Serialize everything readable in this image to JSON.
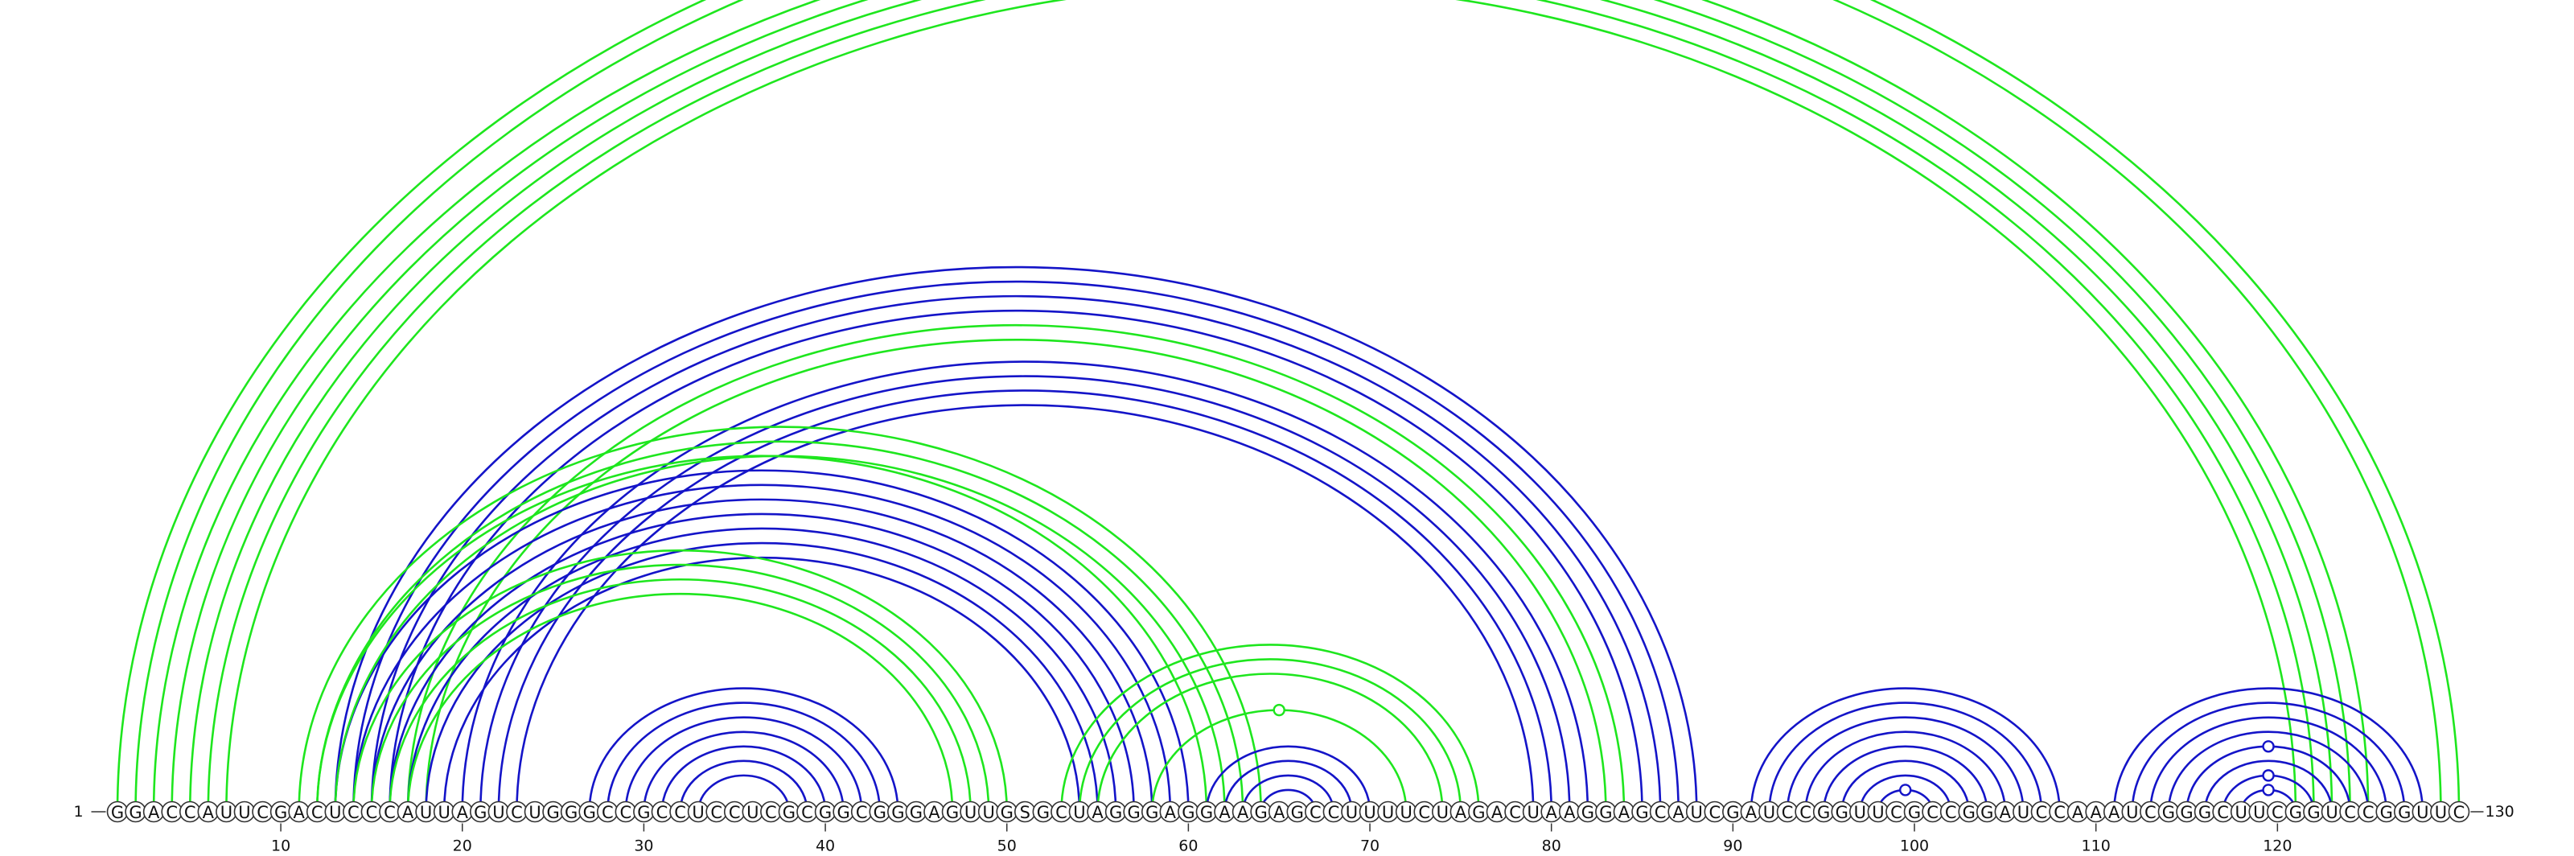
{
  "sequence": "GGACCAUUCGACUCCCAUUAGUCUGGGCCGCCUCCUCGCGGCGGGAGUUGSGCUAGGGAGGAAGAGCCUUUUCUAGACUAAGGAGCAUCGAUCCGGUUCGCCGGAUCCAAAUCGGGCUUCGGUCCGGUUC",
  "start_label": "1",
  "end_label": "130",
  "ticks": [
    "10",
    "20",
    "30",
    "40",
    "50",
    "60",
    "70",
    "80",
    "90",
    "100",
    "110",
    "120"
  ],
  "tick_positions": [
    10,
    20,
    30,
    40,
    50,
    60,
    70,
    80,
    90,
    100,
    110,
    120
  ],
  "colors": {
    "green": "#1ee61e",
    "blue": "#1414c8"
  },
  "arcs": [
    {
      "color": "green",
      "i": 1,
      "j": 130
    },
    {
      "color": "green",
      "i": 2,
      "j": 129
    },
    {
      "color": "green",
      "i": 3,
      "j": 125
    },
    {
      "color": "green",
      "i": 4,
      "j": 124
    },
    {
      "color": "green",
      "i": 5,
      "j": 123
    },
    {
      "color": "green",
      "i": 6,
      "j": 122
    },
    {
      "color": "green",
      "i": 7,
      "j": 121
    },
    {
      "color": "blue",
      "i": 13,
      "j": 88
    },
    {
      "color": "blue",
      "i": 14,
      "j": 87
    },
    {
      "color": "blue",
      "i": 15,
      "j": 86
    },
    {
      "color": "blue",
      "i": 16,
      "j": 85
    },
    {
      "color": "green",
      "i": 17,
      "j": 84
    },
    {
      "color": "green",
      "i": 18,
      "j": 83
    },
    {
      "color": "blue",
      "i": 20,
      "j": 82
    },
    {
      "color": "blue",
      "i": 21,
      "j": 81
    },
    {
      "color": "blue",
      "i": 22,
      "j": 80
    },
    {
      "color": "blue",
      "i": 23,
      "j": 79
    },
    {
      "color": "blue",
      "i": 13,
      "j": 60
    },
    {
      "color": "blue",
      "i": 14,
      "j": 59
    },
    {
      "color": "blue",
      "i": 15,
      "j": 58
    },
    {
      "color": "blue",
      "i": 16,
      "j": 57
    },
    {
      "color": "blue",
      "i": 17,
      "j": 56
    },
    {
      "color": "blue",
      "i": 18,
      "j": 55
    },
    {
      "color": "blue",
      "i": 19,
      "j": 54
    },
    {
      "color": "green",
      "i": 11,
      "j": 64
    },
    {
      "color": "green",
      "i": 12,
      "j": 63
    },
    {
      "color": "green",
      "i": 12,
      "j": 61
    },
    {
      "color": "green",
      "i": 13,
      "j": 62
    },
    {
      "color": "green",
      "i": 14,
      "j": 50
    },
    {
      "color": "green",
      "i": 15,
      "j": 49
    },
    {
      "color": "green",
      "i": 16,
      "j": 48
    },
    {
      "color": "green",
      "i": 17,
      "j": 47
    },
    {
      "color": "blue",
      "i": 27,
      "j": 44
    },
    {
      "color": "blue",
      "i": 28,
      "j": 43
    },
    {
      "color": "blue",
      "i": 29,
      "j": 42
    },
    {
      "color": "blue",
      "i": 30,
      "j": 41
    },
    {
      "color": "blue",
      "i": 31,
      "j": 40
    },
    {
      "color": "blue",
      "i": 32,
      "j": 39
    },
    {
      "color": "blue",
      "i": 33,
      "j": 38
    },
    {
      "color": "green",
      "i": 53,
      "j": 76
    },
    {
      "color": "green",
      "i": 54,
      "j": 75
    },
    {
      "color": "green",
      "i": 55,
      "j": 74
    },
    {
      "color": "green",
      "i": 58,
      "j": 72
    },
    {
      "color": "blue",
      "i": 61,
      "j": 70
    },
    {
      "color": "blue",
      "i": 62,
      "j": 69
    },
    {
      "color": "blue",
      "i": 63,
      "j": 68
    },
    {
      "color": "blue",
      "i": 64,
      "j": 67
    },
    {
      "color": "blue",
      "i": 91,
      "j": 108
    },
    {
      "color": "blue",
      "i": 92,
      "j": 107
    },
    {
      "color": "blue",
      "i": 93,
      "j": 106
    },
    {
      "color": "blue",
      "i": 94,
      "j": 105
    },
    {
      "color": "blue",
      "i": 95,
      "j": 104
    },
    {
      "color": "blue",
      "i": 96,
      "j": 103
    },
    {
      "color": "blue",
      "i": 97,
      "j": 102
    },
    {
      "color": "blue",
      "i": 98,
      "j": 101
    },
    {
      "color": "blue",
      "i": 111,
      "j": 128
    },
    {
      "color": "blue",
      "i": 112,
      "j": 127
    },
    {
      "color": "blue",
      "i": 113,
      "j": 126
    },
    {
      "color": "blue",
      "i": 114,
      "j": 125
    },
    {
      "color": "blue",
      "i": 115,
      "j": 124
    },
    {
      "color": "blue",
      "i": 116,
      "j": 123
    },
    {
      "color": "blue",
      "i": 117,
      "j": 122
    },
    {
      "color": "blue",
      "i": 118,
      "j": 121
    }
  ],
  "markers": [
    {
      "color": "green",
      "i": 1,
      "j": 130
    },
    {
      "color": "green",
      "i": 58,
      "j": 72
    },
    {
      "color": "blue",
      "i": 98,
      "j": 101
    },
    {
      "color": "blue",
      "i": 117,
      "j": 122
    },
    {
      "color": "blue",
      "i": 115,
      "j": 124
    },
    {
      "color": "blue",
      "i": 118,
      "j": 121
    }
  ]
}
